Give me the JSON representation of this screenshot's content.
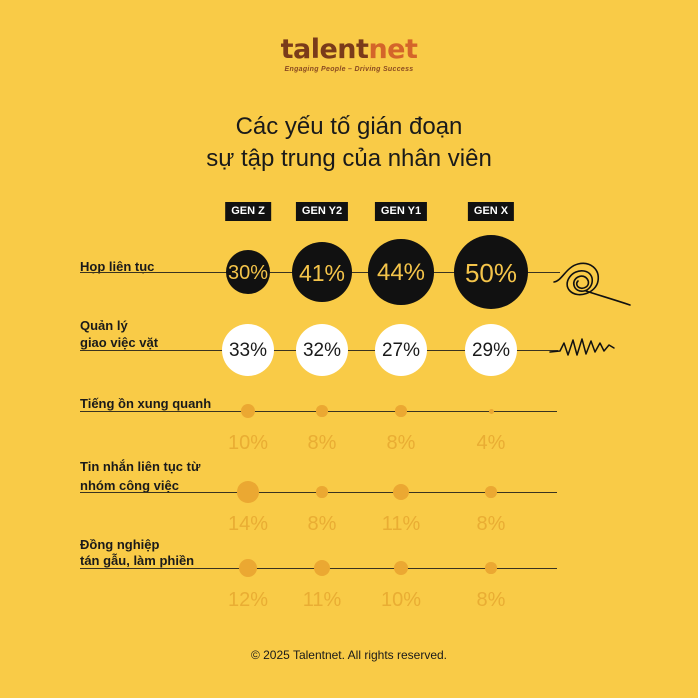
{
  "brand": {
    "name_a": "talent",
    "name_b": "net",
    "tagline": "Engaging People – Driving Success"
  },
  "title_lines": [
    "Các yếu tố gián đoạn",
    "sự tập trung của nhân viên"
  ],
  "footer": "© 2025 Talentnet. All rights reserved.",
  "colors": {
    "background": "#f9cb47",
    "dark_circle": "#111111",
    "dark_circle_text": "#f4c44a",
    "light_circle": "#ffffff",
    "faint_dot": "#eba832",
    "faint_text": "#e9ad33"
  },
  "chart_data": {
    "type": "table",
    "categories": [
      "GEN Z",
      "GEN Y2",
      "GEN Y1",
      "GEN X"
    ],
    "series": [
      {
        "name": "Họp liên tục",
        "label_lines": [
          "Họp liên tục"
        ],
        "values": [
          30,
          41,
          44,
          50
        ],
        "style": "dark"
      },
      {
        "name": "Quản lý giao việc vặt",
        "label_lines": [
          "Quản lý",
          "giao việc vặt"
        ],
        "values": [
          33,
          32,
          27,
          29
        ],
        "style": "light"
      },
      {
        "name": "Tiếng ồn xung quanh",
        "label_lines": [
          "Tiếng ồn xung quanh"
        ],
        "values": [
          10,
          8,
          8,
          4
        ],
        "style": "faint"
      },
      {
        "name": "Tin nhắn liên tục từ nhóm công việc",
        "label_lines": [
          "Tin nhắn liên tục từ",
          "nhóm công việc"
        ],
        "values": [
          14,
          8,
          11,
          8
        ],
        "style": "faint"
      },
      {
        "name": "Đồng nghiệp tán gẫu, làm phiền",
        "label_lines": [
          "Đồng nghiệp",
          "tán gẫu, làm phiền"
        ],
        "values": [
          12,
          11,
          10,
          8
        ],
        "style": "faint"
      }
    ],
    "unit": "%"
  }
}
